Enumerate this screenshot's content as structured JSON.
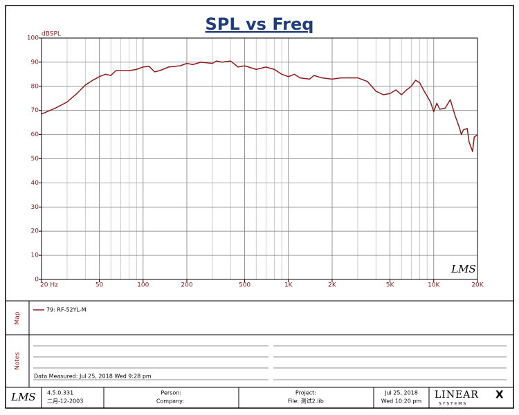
{
  "chart_data": {
    "type": "line",
    "title": "SPL vs Freq",
    "y_label": "dBSPL",
    "watermark": "LMS",
    "xscale": "log",
    "x": [
      20,
      25,
      30,
      35,
      40,
      45,
      50,
      55,
      60,
      65,
      70,
      80,
      90,
      100,
      110,
      120,
      130,
      150,
      180,
      200,
      220,
      250,
      300,
      320,
      350,
      400,
      450,
      500,
      600,
      700,
      800,
      900,
      1000,
      1100,
      1200,
      1400,
      1500,
      1700,
      2000,
      2300,
      2500,
      3000,
      3500,
      4000,
      4500,
      5000,
      5500,
      6000,
      6500,
      7000,
      7500,
      8000,
      8500,
      9000,
      9500,
      10000,
      10500,
      11000,
      12000,
      13000,
      14000,
      15000,
      15500,
      16000,
      17000,
      17500,
      18500,
      19000,
      20000
    ],
    "series": [
      {
        "name": "79: RF-52YL-M",
        "color": "#8b1a1a",
        "values": [
          68.5,
          71,
          73.5,
          77,
          80.5,
          82.5,
          84,
          85,
          84.5,
          86.5,
          86.5,
          86.5,
          87,
          88,
          88.3,
          86,
          86.5,
          88,
          88.5,
          89.5,
          89,
          90,
          89.5,
          90.5,
          90,
          90.5,
          88,
          88.5,
          87,
          88,
          87,
          85,
          84,
          85,
          83.5,
          83,
          84.5,
          83.5,
          83,
          83.5,
          83.5,
          83.5,
          82,
          78,
          76.5,
          77,
          78.5,
          76.5,
          78.5,
          80,
          82.5,
          81.5,
          78.5,
          76,
          73.5,
          69.5,
          73,
          70.5,
          71,
          74.5,
          68,
          63,
          60,
          62,
          62.5,
          57,
          53,
          59,
          60
        ]
      }
    ],
    "xlim": [
      20,
      20000
    ],
    "ylim": [
      0,
      100
    ],
    "xticks": [
      {
        "value": 20,
        "label": "20 Hz"
      },
      50,
      100,
      200,
      500,
      {
        "value": 1000,
        "label": "1K"
      },
      {
        "value": 2000,
        "label": "2K"
      },
      {
        "value": 5000,
        "label": "5K"
      },
      {
        "value": 10000,
        "label": "10K"
      },
      {
        "value": 20000,
        "label": "20K"
      }
    ],
    "xgrid": [
      20,
      30,
      40,
      50,
      60,
      70,
      80,
      90,
      100,
      200,
      300,
      400,
      500,
      600,
      700,
      800,
      900,
      1000,
      2000,
      3000,
      4000,
      5000,
      6000,
      7000,
      8000,
      9000,
      10000,
      20000
    ],
    "yticks": [
      0,
      10,
      20,
      30,
      40,
      50,
      60,
      70,
      80,
      90,
      100
    ],
    "grid": true
  },
  "map": {
    "label": "Map"
  },
  "notes": {
    "label": "Notes",
    "text": "Data Measured: Jul 25, 2018  Wed  9:28 pm"
  },
  "footer": {
    "logo": "LMS",
    "version": "4.5.0.331",
    "build_date": "二月-12-2003",
    "person": "Person:",
    "company": "Company:",
    "project": "Project:",
    "file": "File: 测试2.lib",
    "date": "Jul 25, 2018",
    "time": "Wed 10:20 pm",
    "brand": "LINEAR",
    "brand_x": "X",
    "brand_sub": "S Y S T E M S"
  }
}
